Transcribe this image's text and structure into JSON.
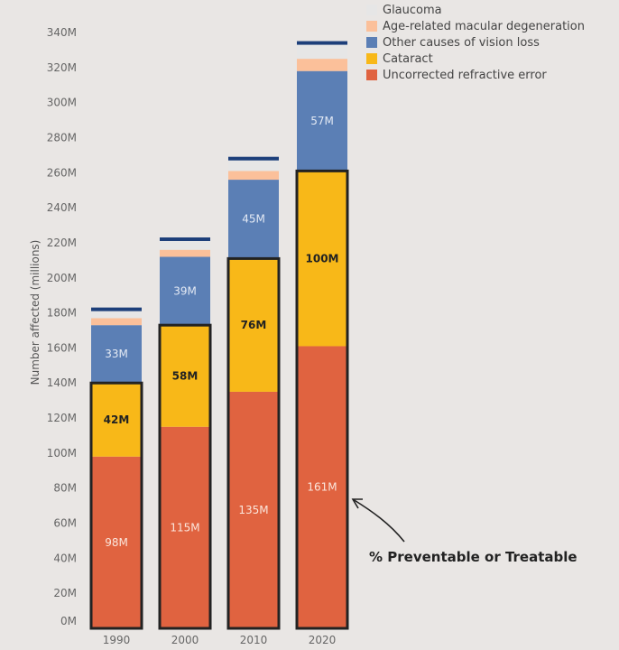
{
  "chart_data": {
    "type": "bar",
    "stacked": true,
    "title": "",
    "xlabel": "",
    "ylabel": "Number affected (millions)",
    "ylim": [
      0,
      340
    ],
    "yticks": [
      0,
      20,
      40,
      60,
      80,
      100,
      120,
      140,
      160,
      180,
      200,
      220,
      240,
      260,
      280,
      300,
      320,
      340
    ],
    "ytick_suffix": "M",
    "categories": [
      "1990",
      "2000",
      "2010",
      "2020"
    ],
    "series": [
      {
        "name": "Uncorrected refractive error",
        "color": "#e06340",
        "label_color": "#fbe6dc",
        "values": [
          98,
          115,
          135,
          161
        ],
        "labels": [
          "98M",
          "115M",
          "135M",
          "161M"
        ]
      },
      {
        "name": "Cataract",
        "color": "#f8b818",
        "label_color": "#222222",
        "values": [
          42,
          58,
          76,
          100
        ],
        "labels": [
          "42M",
          "58M",
          "76M",
          "100M"
        ]
      },
      {
        "name": "Other causes of vision loss",
        "color": "#5b7fb5",
        "label_color": "#e3e9f4",
        "values": [
          33,
          39,
          45,
          57
        ],
        "labels": [
          "33M",
          "39M",
          "45M",
          "57M"
        ]
      },
      {
        "name": "Age-related macular degeneration",
        "color": "#fbc09a",
        "label_color": "#222222",
        "values": [
          4,
          4,
          5,
          7
        ],
        "labels": [
          "",
          "",
          "",
          ""
        ]
      },
      {
        "name": "Glaucoma",
        "color": "#e6e6e6",
        "label_color": "#222222",
        "values": [
          4,
          5,
          6,
          8
        ],
        "labels": [
          "",
          "",
          "",
          ""
        ]
      }
    ],
    "total_marker_color": "#1d3f7a",
    "highlight": {
      "series": [
        "Uncorrected refractive error",
        "Cataract"
      ],
      "outline_color": "#222222"
    },
    "legend": {
      "placement": "top-right",
      "order": [
        "Glaucoma",
        "Age-related macular degeneration",
        "Other causes of vision loss",
        "Cataract",
        "Uncorrected refractive error"
      ]
    },
    "annotation": {
      "text": "% Preventable or Treatable",
      "points_to": "2020"
    },
    "grid": false
  }
}
